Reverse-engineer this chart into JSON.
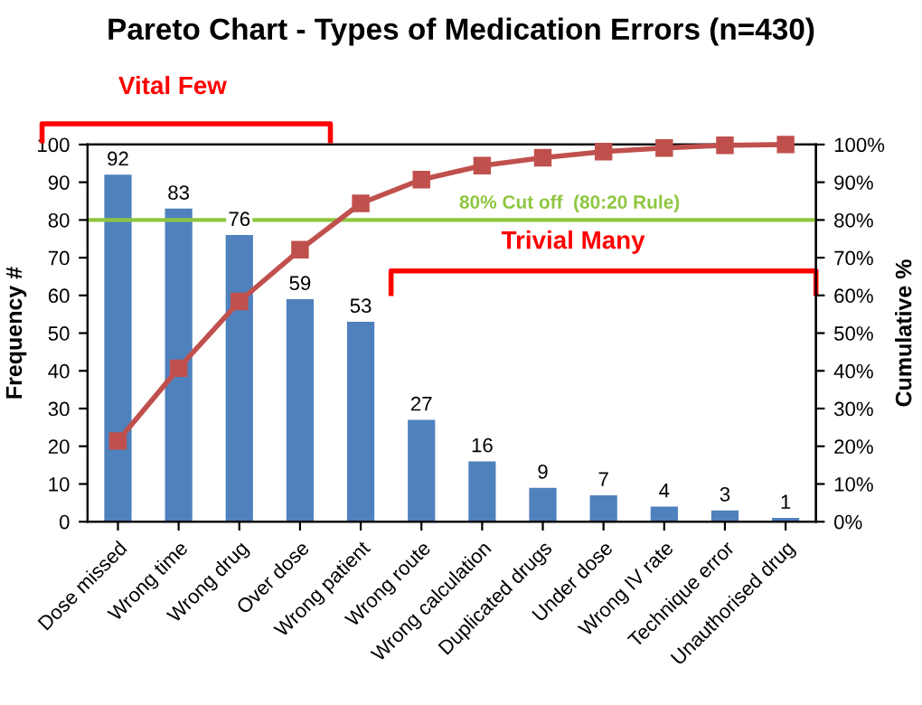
{
  "chart_data": {
    "type": "bar",
    "title": "Pareto Chart - Types of Medication Errors (n=430)",
    "categories": [
      "Dose missed",
      "Wrong time",
      "Wrong drug",
      "Over dose",
      "Wrong patient",
      "Wrong route",
      "Wrong calculation",
      "Duplicated drugs",
      "Under dose",
      "Wrong IV rate",
      "Technique error",
      "Unauthorised drug"
    ],
    "series": [
      {
        "color": "#4f81bd",
        "values": [
          92,
          83,
          76,
          59,
          53,
          27,
          16,
          9,
          7,
          4,
          3,
          1
        ]
      },
      {
        "type": "line",
        "axis": "y2",
        "color": "#c0504d",
        "marker": "square",
        "values": [
          21.4,
          40.7,
          58.4,
          72.1,
          84.4,
          90.7,
          94.4,
          96.5,
          98.1,
          99.1,
          99.8,
          100
        ]
      }
    ],
    "value_labels": [
      "92",
      "83",
      "76",
      "59",
      "53",
      "27",
      "16",
      "9",
      "7",
      "4",
      "3",
      "1"
    ],
    "ylabel": "Frequency #",
    "y2label": "Cumulative %",
    "ylim": [
      0,
      100
    ],
    "yticks": [
      0,
      10,
      20,
      30,
      40,
      50,
      60,
      70,
      80,
      90,
      100
    ],
    "y2lim": [
      0,
      100
    ],
    "y2ticks": [
      {
        "value": 0,
        "label": "0%"
      },
      {
        "value": 10,
        "label": "10%"
      },
      {
        "value": 20,
        "label": "20%"
      },
      {
        "value": 30,
        "label": "30%"
      },
      {
        "value": 40,
        "label": "40%"
      },
      {
        "value": 50,
        "label": "50%"
      },
      {
        "value": 60,
        "label": "60%"
      },
      {
        "value": 70,
        "label": "70%"
      },
      {
        "value": 80,
        "label": "80%"
      },
      {
        "value": 90,
        "label": "90%"
      },
      {
        "value": 100,
        "label": "100%"
      }
    ],
    "ref_lines": [
      {
        "axis": "y2",
        "value": 80,
        "label": "80% Cut off  (80:20 Rule)",
        "color": "#8dc63f"
      }
    ],
    "annotations": [
      "Vital Few",
      "Trivial Many"
    ],
    "grid": false
  }
}
